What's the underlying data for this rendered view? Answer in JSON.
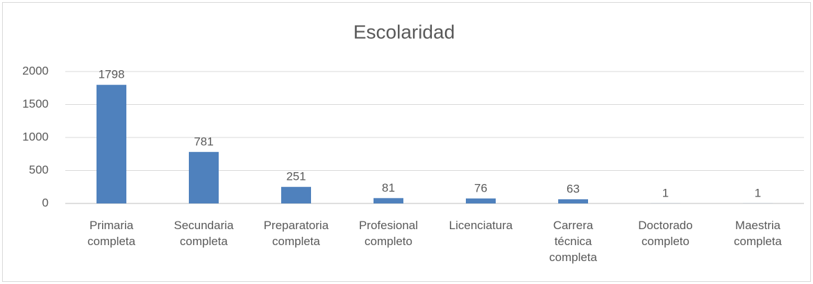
{
  "chart_data": {
    "type": "bar",
    "title": "Escolaridad",
    "categories": [
      "Primaria\ncompleta",
      "Secundaria\ncompleta",
      "Preparatoria\ncompleta",
      "Profesional\ncompleto",
      "Licenciatura",
      "Carrera\ntécnica\ncompleta",
      "Doctorado\ncompleto",
      "Maestria\ncompleta"
    ],
    "values": [
      1798,
      781,
      251,
      81,
      76,
      63,
      1,
      1
    ],
    "color": "#4f81bd",
    "ylim": [
      0,
      2000
    ],
    "yticks": [
      0,
      500,
      1000,
      1500,
      2000
    ],
    "grid": true
  }
}
